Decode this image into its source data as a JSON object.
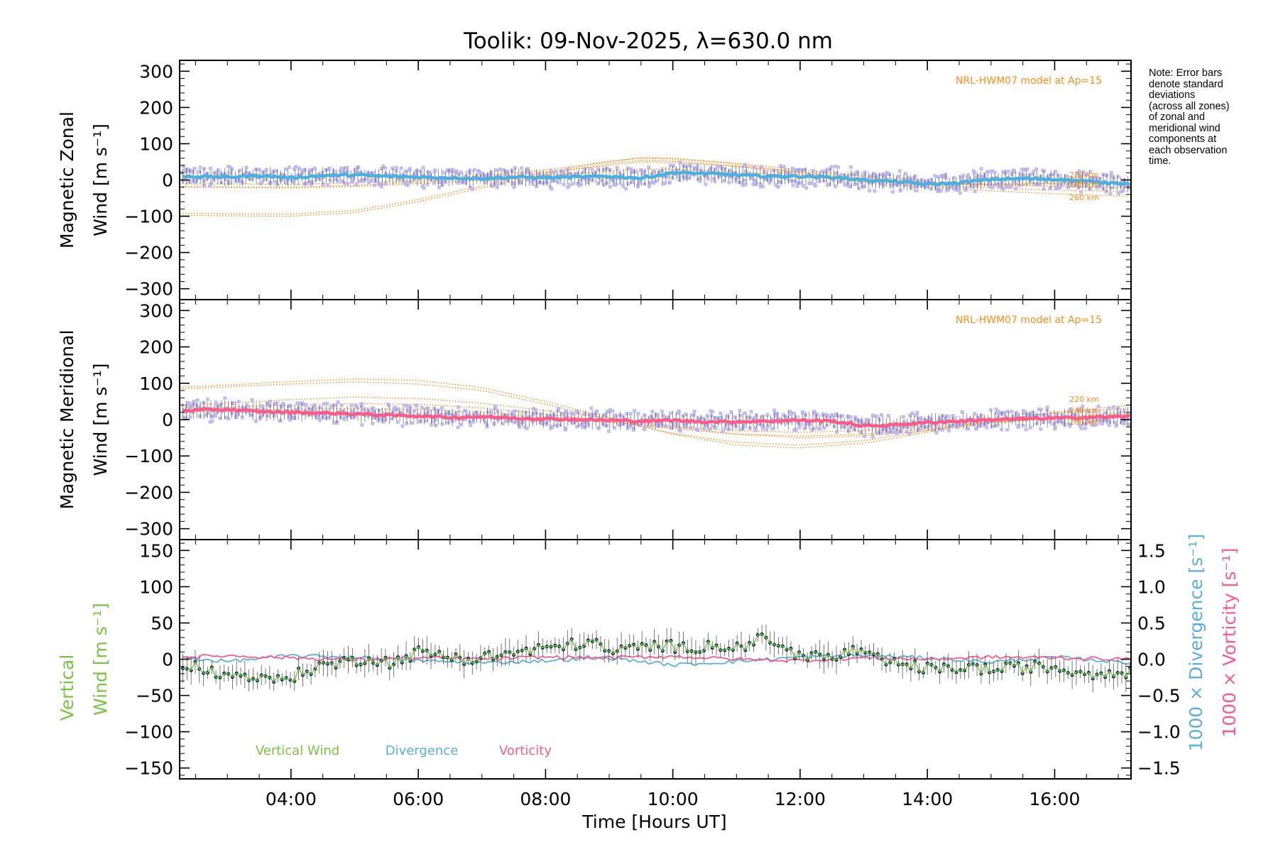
{
  "colors": {
    "zonal": "#4ab0e0",
    "meridional": "#ff5a87",
    "vertical": "#7bc443",
    "divergence": "#5aaee0",
    "vorticity": "#ff5a87",
    "model": "#ff8c1a",
    "scatter": "#b7b3ea",
    "points": "#123b4a",
    "errbar": "#000000"
  },
  "note_lines": [
    "Note: Error bars",
    "denote standard",
    "deviations",
    "(across all zones)",
    "of zonal and",
    "meridional wind",
    "components at",
    "each observation",
    "time."
  ],
  "chart_data": [
    {
      "type": "line",
      "title": "Toolik: 09-Nov-2025, λ=630.0 nm",
      "ylabel_lines": [
        "Magnetic Zonal",
        "Wind [m s⁻¹]"
      ],
      "xlim": [
        2.25,
        17.2
      ],
      "ylim": [
        -330,
        330
      ],
      "yticks": [
        300,
        200,
        100,
        0,
        -100,
        -200,
        -300
      ],
      "yticklabels": [
        "300",
        "200",
        "100",
        "0",
        "−100",
        "−200",
        "−300"
      ],
      "model_label": "NRL-HWM07 model at Ap=15",
      "model_altitude_labels": [
        "220 km",
        "240 km",
        "260 km"
      ],
      "model_curves": [
        {
          "name": "model-a",
          "x": [
            2.3,
            4,
            5,
            6,
            7,
            8,
            9,
            9.5,
            10,
            11,
            12,
            13,
            14,
            15,
            16,
            17.2
          ],
          "values": [
            -98,
            -100,
            -90,
            -60,
            -22,
            15,
            45,
            54,
            52,
            38,
            15,
            -5,
            -20,
            -30,
            -38,
            -45
          ]
        },
        {
          "name": "model-b",
          "x": [
            2.3,
            4,
            5,
            6,
            7,
            8,
            9,
            9.5,
            10,
            11,
            12,
            13,
            14,
            15,
            16,
            17.2
          ],
          "values": [
            -92,
            -94,
            -84,
            -54,
            -16,
            20,
            52,
            60,
            58,
            44,
            20,
            -2,
            -15,
            -22,
            -28,
            -32
          ]
        },
        {
          "name": "model-c",
          "x": [
            2.3,
            4,
            5,
            6,
            7,
            8,
            9,
            9.5,
            10,
            11,
            12,
            13,
            14,
            15,
            16,
            17.2
          ],
          "values": [
            -10,
            -12,
            -8,
            0,
            12,
            28,
            50,
            62,
            60,
            46,
            28,
            10,
            -5,
            -12,
            -18,
            -22
          ]
        },
        {
          "name": "model-d",
          "x": [
            2.3,
            4,
            5,
            6,
            7,
            8,
            9,
            9.5,
            10,
            11,
            12,
            13,
            14,
            15,
            16,
            17.2
          ],
          "values": [
            -18,
            -20,
            -15,
            -5,
            8,
            22,
            40,
            50,
            48,
            38,
            22,
            5,
            -8,
            -15,
            -10,
            -8
          ]
        },
        {
          "name": "model-e",
          "x": [
            2.3,
            4,
            5,
            6,
            7,
            8,
            9,
            9.5,
            10,
            11,
            12,
            13,
            14,
            15,
            16,
            17.2
          ],
          "values": [
            -20,
            -22,
            -18,
            -10,
            0,
            12,
            25,
            30,
            30,
            22,
            10,
            -2,
            -10,
            -12,
            -8,
            -5
          ]
        }
      ],
      "series": [
        {
          "name": "Zonal wind",
          "color_key": "zonal",
          "x": [
            2.3,
            3,
            3.5,
            4,
            4.5,
            5,
            5.5,
            6,
            6.5,
            7,
            7.5,
            8,
            8.5,
            9,
            9.5,
            10,
            10.5,
            11,
            11.5,
            12,
            12.5,
            13,
            13.5,
            14,
            14.5,
            15,
            15.5,
            16,
            16.5,
            17,
            17.2
          ],
          "values": [
            10,
            8,
            12,
            6,
            12,
            14,
            10,
            8,
            6,
            4,
            8,
            6,
            8,
            10,
            5,
            20,
            18,
            14,
            10,
            10,
            8,
            0,
            -4,
            -12,
            -8,
            2,
            4,
            2,
            -4,
            -8,
            -12
          ]
        }
      ]
    },
    {
      "type": "line",
      "ylabel_lines": [
        "Magnetic Meridional",
        "Wind [m s⁻¹]"
      ],
      "xlim": [
        2.25,
        17.2
      ],
      "ylim": [
        -330,
        330
      ],
      "yticks": [
        300,
        200,
        100,
        0,
        -100,
        -200,
        -300
      ],
      "yticklabels": [
        "300",
        "200",
        "100",
        "0",
        "−100",
        "−200",
        "−300"
      ],
      "model_label": "NRL-HWM07 model at Ap=15",
      "model_altitude_labels": [
        "220 km",
        "240 km",
        "260 km"
      ],
      "model_curves": [
        {
          "name": "model-a",
          "x": [
            2.3,
            3,
            4,
            5,
            6,
            7,
            8,
            9,
            10,
            11,
            12,
            13,
            14,
            15,
            16,
            17.2
          ],
          "values": [
            90,
            95,
            105,
            112,
            108,
            88,
            50,
            5,
            -40,
            -70,
            -78,
            -65,
            -35,
            -5,
            20,
            40
          ]
        },
        {
          "name": "model-b",
          "x": [
            2.3,
            3,
            4,
            5,
            6,
            7,
            8,
            9,
            10,
            11,
            12,
            13,
            14,
            15,
            16,
            17.2
          ],
          "values": [
            85,
            90,
            98,
            104,
            98,
            80,
            42,
            0,
            -38,
            -62,
            -70,
            -58,
            -30,
            -2,
            18,
            32
          ]
        },
        {
          "name": "model-c",
          "x": [
            2.3,
            3,
            4,
            5,
            6,
            7,
            8,
            9,
            10,
            11,
            12,
            13,
            14,
            15,
            16,
            17.2
          ],
          "values": [
            40,
            45,
            55,
            62,
            58,
            45,
            25,
            5,
            -20,
            -40,
            -50,
            -45,
            -30,
            -10,
            5,
            20
          ]
        },
        {
          "name": "model-d",
          "x": [
            2.3,
            3,
            4,
            5,
            6,
            7,
            8,
            9,
            10,
            11,
            12,
            13,
            14,
            15,
            16,
            17.2
          ],
          "values": [
            30,
            34,
            40,
            44,
            42,
            32,
            15,
            -5,
            -25,
            -40,
            -45,
            -40,
            -25,
            -8,
            5,
            15
          ]
        },
        {
          "name": "model-e",
          "x": [
            2.3,
            3,
            4,
            5,
            6,
            7,
            8,
            9,
            10,
            11,
            12,
            13,
            14,
            15,
            16,
            17.2
          ],
          "values": [
            22,
            24,
            28,
            30,
            28,
            20,
            8,
            -8,
            -20,
            -30,
            -35,
            -30,
            -18,
            -5,
            2,
            8
          ]
        }
      ],
      "series": [
        {
          "name": "Meridional wind",
          "color_key": "meridional",
          "x": [
            2.3,
            3,
            3.5,
            4,
            4.5,
            5,
            5.5,
            6,
            6.5,
            7,
            7.5,
            8,
            8.5,
            9,
            9.5,
            10,
            10.5,
            11,
            11.5,
            12,
            12.5,
            13,
            13.5,
            14,
            14.5,
            15,
            15.5,
            16,
            16.5,
            17,
            17.2
          ],
          "values": [
            25,
            28,
            22,
            20,
            18,
            16,
            12,
            10,
            6,
            8,
            4,
            2,
            0,
            -2,
            -4,
            -2,
            -6,
            -6,
            -4,
            -2,
            -4,
            -18,
            -14,
            -8,
            -4,
            0,
            2,
            4,
            6,
            8,
            10
          ]
        }
      ]
    },
    {
      "type": "line",
      "ylabel_lines": [
        "Vertical",
        "Wind [m s⁻¹]"
      ],
      "xlabel": "Time [Hours UT]",
      "xlim": [
        2.25,
        17.2
      ],
      "ylim": [
        -165,
        165
      ],
      "yticks": [
        150,
        100,
        50,
        0,
        -50,
        -100,
        -150
      ],
      "yticklabels": [
        "150",
        "100",
        "50",
        "0",
        "−50",
        "−100",
        "−150"
      ],
      "xticks": [
        4,
        6,
        8,
        10,
        12,
        14,
        16
      ],
      "xticklabels": [
        "04:00",
        "06:00",
        "08:00",
        "10:00",
        "12:00",
        "14:00",
        "16:00"
      ],
      "y2lim": [
        -1.65,
        1.65
      ],
      "y2ticks": [
        1.5,
        1.0,
        0.5,
        0.0,
        -0.5,
        -1.0,
        -1.5
      ],
      "y2ticklabels": [
        "1.5",
        "1.0",
        "0.5",
        "0.0",
        "−0.5",
        "−1.0",
        "−1.5"
      ],
      "y2label_divergence": "1000 × Divergence [s⁻¹]",
      "y2label_vorticity": "1000 × Vorticity [s⁻¹]",
      "legend": [
        "Vertical Wind",
        "Divergence",
        "Vorticity"
      ],
      "series": [
        {
          "name": "Vertical Wind",
          "color_key": "vertical",
          "x": [
            2.3,
            2.7,
            3,
            3.3,
            3.6,
            4,
            4.4,
            4.8,
            5.2,
            5.6,
            6,
            6.4,
            6.8,
            7.2,
            7.6,
            8,
            8.4,
            8.7,
            9,
            9.4,
            9.8,
            10.2,
            10.6,
            11,
            11.3,
            11.5,
            11.8,
            12.2,
            12.6,
            12.8,
            13,
            13.4,
            13.8,
            14.2,
            14.6,
            15,
            15.4,
            15.8,
            16.2,
            16.6,
            17,
            17.2
          ],
          "values": [
            -5,
            -15,
            -25,
            -20,
            -30,
            -25,
            -10,
            -5,
            2,
            -5,
            10,
            5,
            0,
            5,
            10,
            15,
            20,
            25,
            10,
            15,
            20,
            15,
            20,
            15,
            25,
            30,
            10,
            5,
            0,
            15,
            5,
            -5,
            -10,
            -15,
            -10,
            -15,
            -12,
            -10,
            -15,
            -20,
            -15,
            -20
          ]
        },
        {
          "name": "Divergence",
          "color_key": "divergence",
          "x": [
            2.3,
            3,
            4,
            5,
            6,
            7,
            8,
            9,
            10,
            11,
            12,
            13,
            14,
            15,
            16,
            17.2
          ],
          "values": [
            0.02,
            -0.03,
            0.05,
            0.03,
            -0.02,
            -0.05,
            -0.02,
            0.02,
            -0.08,
            -0.03,
            0.03,
            0.05,
            0.02,
            -0.04,
            0.03,
            -0.05
          ]
        },
        {
          "name": "Vorticity",
          "color_key": "vorticity",
          "x": [
            2.3,
            3,
            4,
            5,
            6,
            7,
            8,
            9,
            10,
            11,
            12,
            13,
            14,
            15,
            16,
            17.2
          ],
          "values": [
            0.03,
            0.05,
            0.02,
            -0.01,
            0.02,
            0.0,
            0.03,
            0.02,
            0.04,
            0.0,
            -0.02,
            0.02,
            0.0,
            0.03,
            0.02,
            0.0
          ]
        }
      ]
    }
  ]
}
